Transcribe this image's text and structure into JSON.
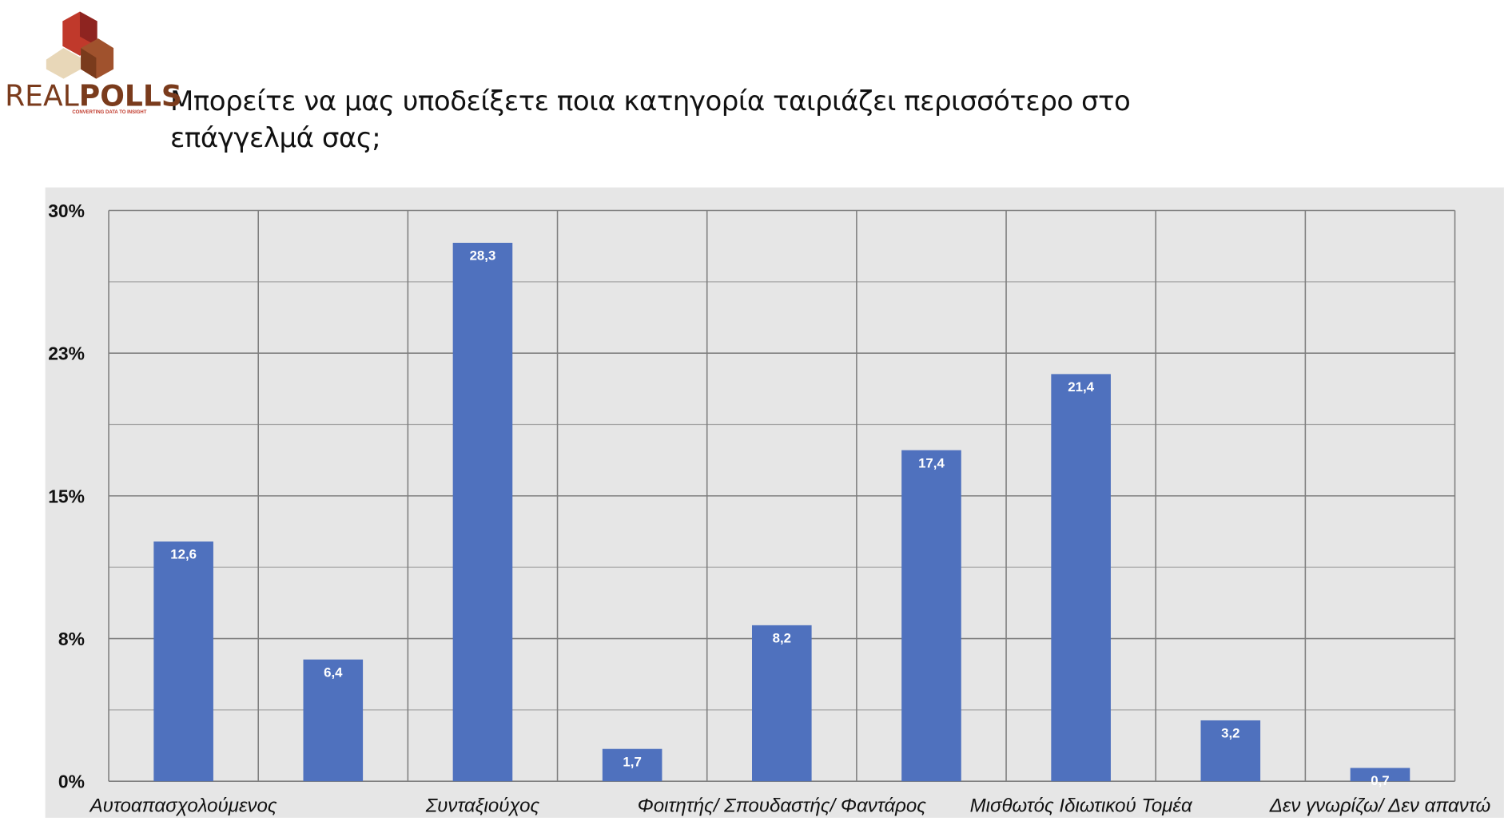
{
  "logo": {
    "part1": "REAL",
    "part2": "POLLS",
    "tagline": "CONVERTING DATA TO INSIGHT"
  },
  "chart_data": {
    "type": "bar",
    "title": "Μπορείτε να μας υποδείξετε ποια κατηγορία ταιριάζει περισσότερο στο επάγγελμά σας;",
    "categories": [
      "Αυτοαπασχολούμενος",
      null,
      "Συνταξιούχος",
      null,
      "Φοιτητής/ Σπουδαστής/ Φαντάρος",
      null,
      "Μισθωτός Ιδιωτικού Τομέα",
      null,
      "Δεν γνωρίζω/ Δεν απαντώ"
    ],
    "values": [
      12.6,
      6.4,
      28.3,
      1.7,
      8.2,
      17.4,
      21.4,
      3.2,
      0.7
    ],
    "value_labels": [
      "12,6",
      "6,4",
      "28,3",
      "1,7",
      "8,2",
      "17,4",
      "21,4",
      "3,2",
      "0,7"
    ],
    "color": "#4f71be",
    "ylim": [
      0,
      30
    ],
    "yticks": [
      {
        "value": 0,
        "label": "0%"
      },
      {
        "value": 7.5,
        "label": "8%"
      },
      {
        "value": 15,
        "label": "15%"
      },
      {
        "value": 22.5,
        "label": "23%"
      },
      {
        "value": 30,
        "label": "30%"
      }
    ],
    "minor_yticks": [
      3.75,
      11.25,
      18.75,
      26.25
    ],
    "grid": true
  }
}
